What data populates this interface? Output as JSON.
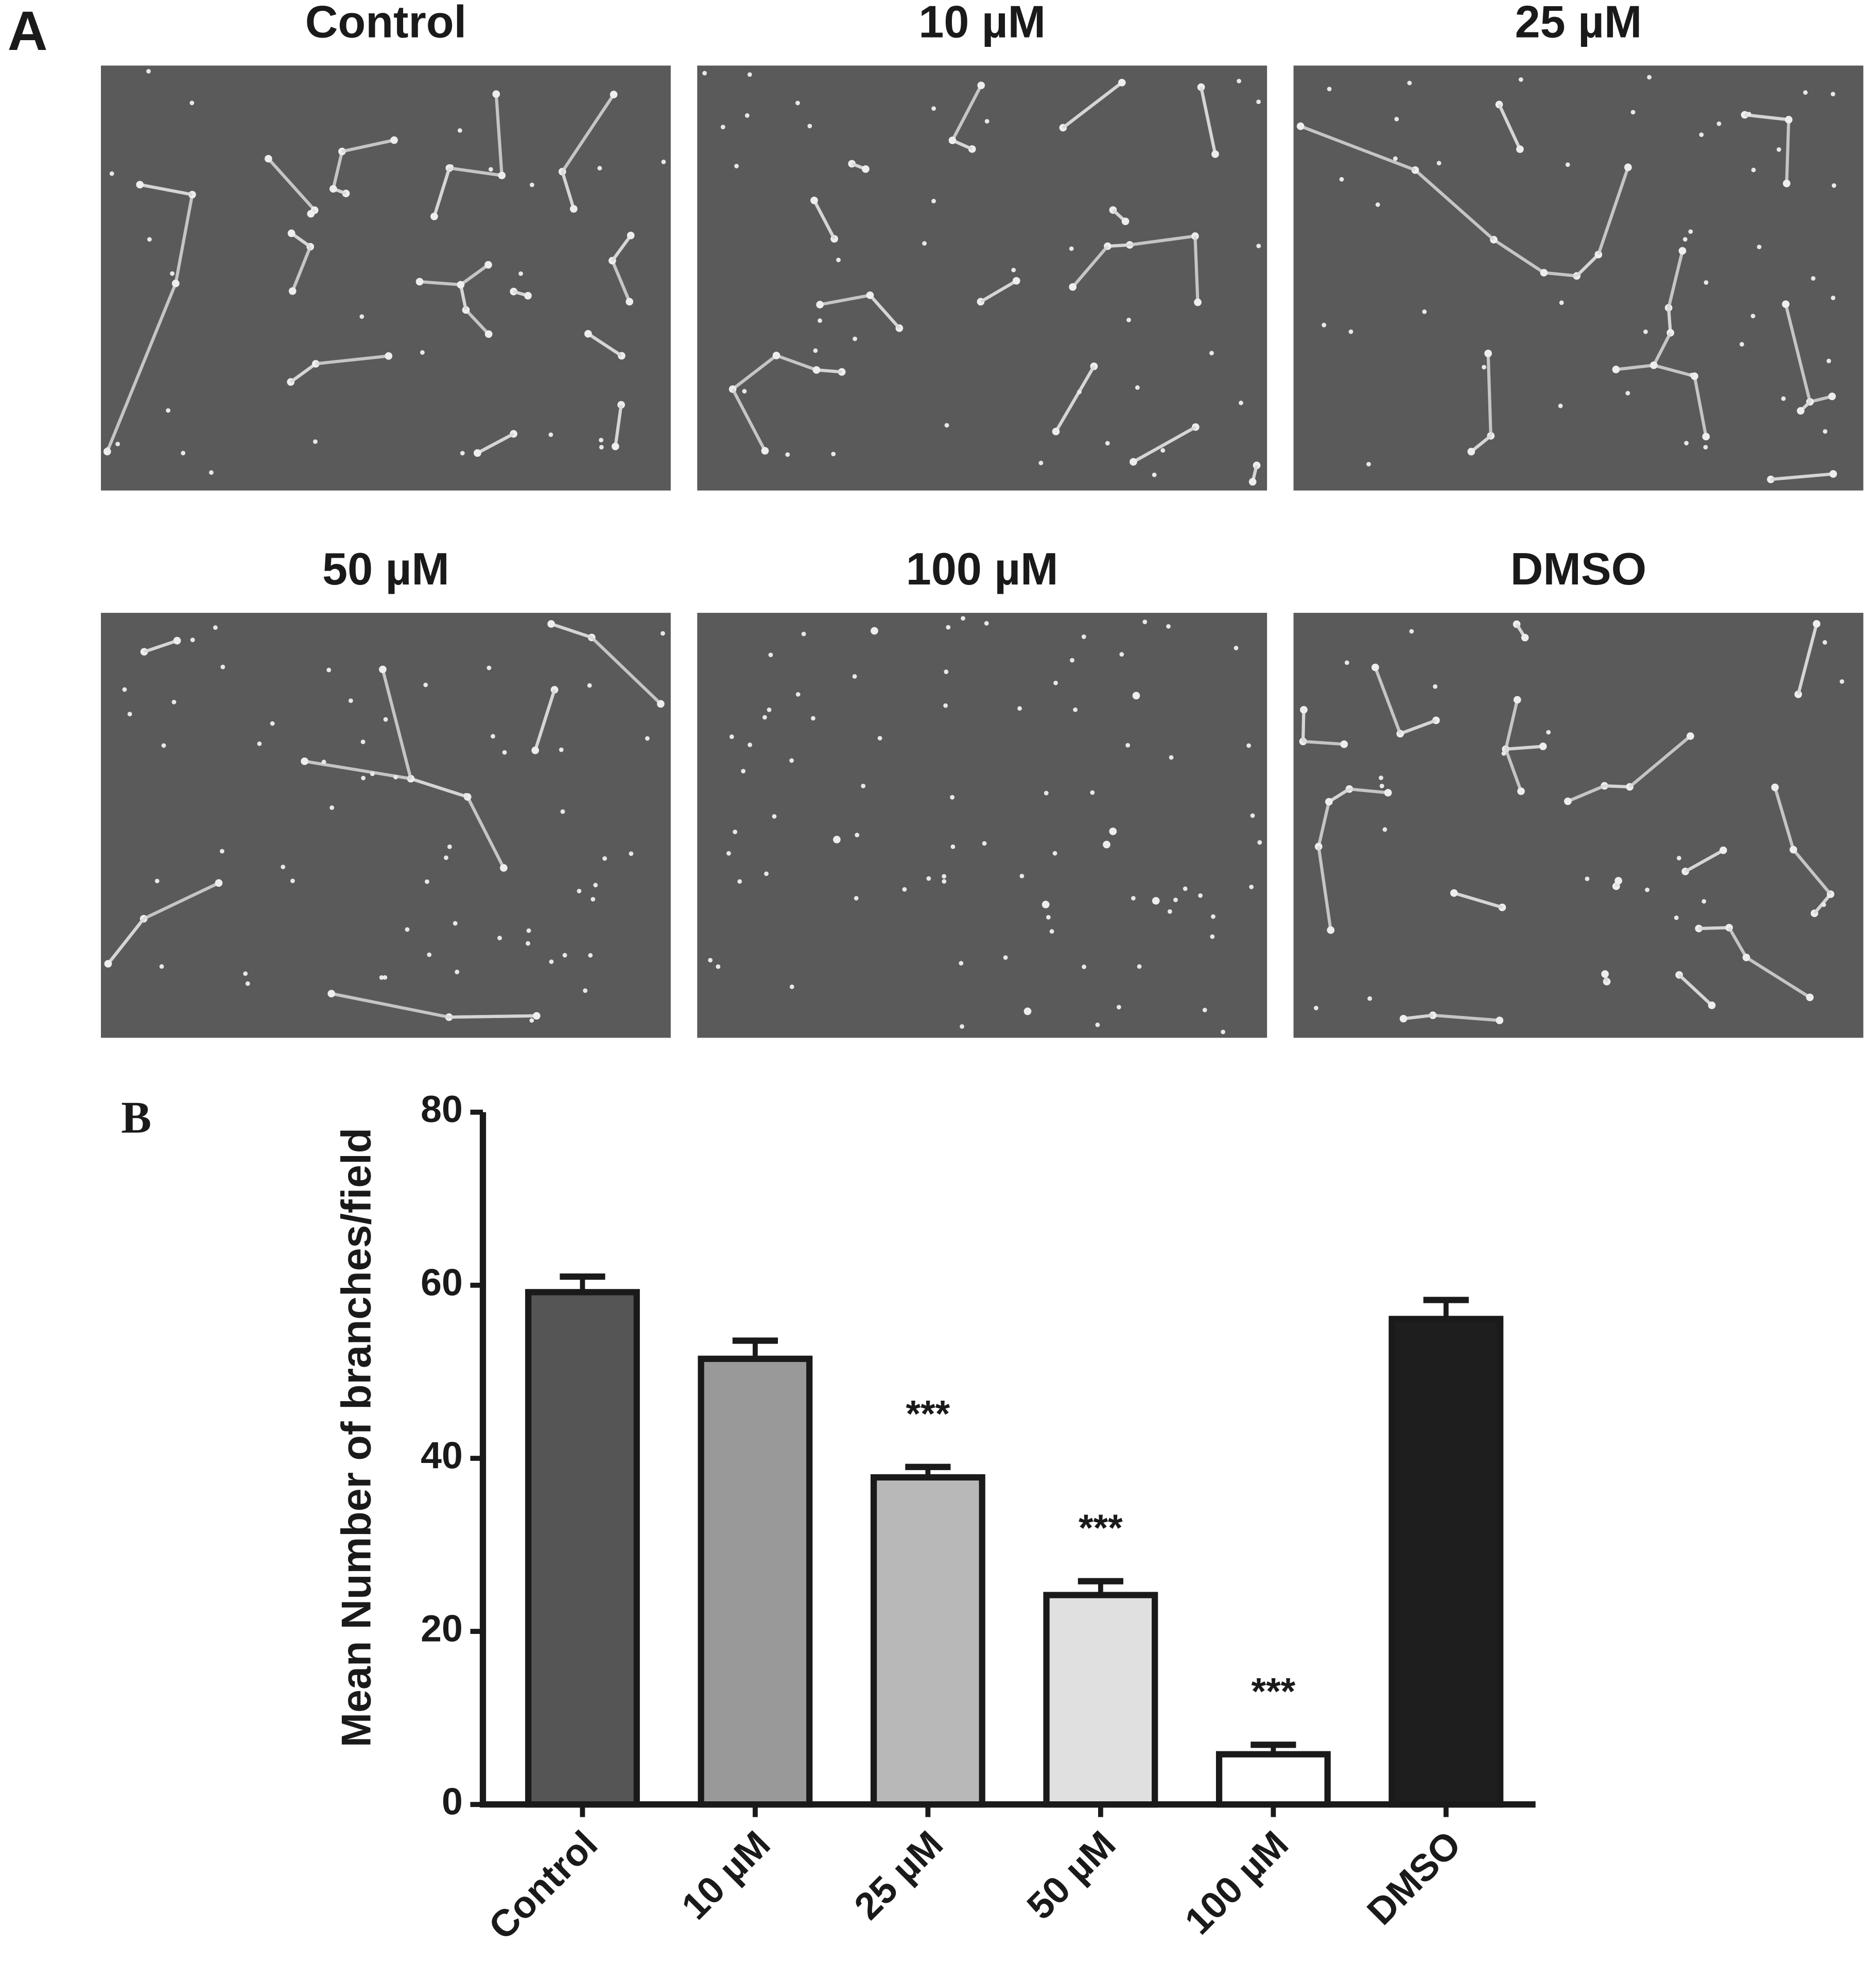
{
  "panel_a": {
    "label": "A",
    "images": [
      {
        "title": "Control"
      },
      {
        "title": "10 µM"
      },
      {
        "title": "25 µM"
      },
      {
        "title": "50 µM"
      },
      {
        "title": "100 µM"
      },
      {
        "title": "DMSO"
      }
    ]
  },
  "chart_data": {
    "type": "bar",
    "panel_label": "B",
    "y_label": "Mean Number of branches/field",
    "categories": [
      "Control",
      "10 µM",
      "25 µM",
      "50 µM",
      "100 µM",
      "DMSO"
    ],
    "values": [
      59.2,
      51.5,
      37.8,
      24.2,
      5.8,
      56.1
    ],
    "errors": [
      1.8,
      2.1,
      1.2,
      1.6,
      1.1,
      2.2
    ],
    "colors": [
      "#555555",
      "#999999",
      "#b8b8b8",
      "#e0e0e0",
      "#ffffff",
      "#1e1e1e"
    ],
    "significance": [
      null,
      null,
      "***",
      "***",
      "***",
      null
    ],
    "ylim": [
      0,
      80
    ],
    "yticks": [
      0,
      20,
      40,
      60,
      80
    ],
    "grid": false
  }
}
